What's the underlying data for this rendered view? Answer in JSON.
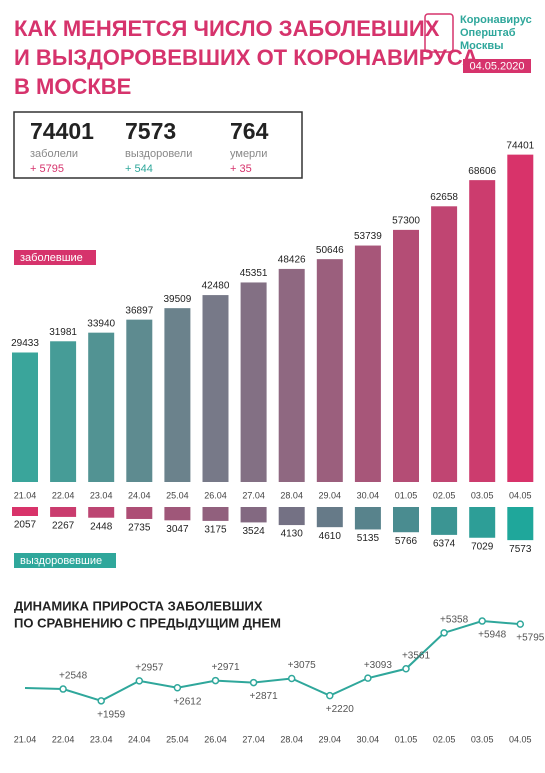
{
  "header": {
    "title": [
      "КАК МЕНЯЕТСЯ ЧИСЛО ЗАБОЛЕВШИХ",
      "И ВЫЗДОРОВЕВШИХ ОТ КОРОНАВИРУСА",
      "В МОСКВЕ"
    ],
    "logo": [
      "Коронавирус",
      "Оперштаб",
      "Москвы"
    ],
    "date": "04.05.2020"
  },
  "stats": [
    {
      "value": "74401",
      "label": "заболели",
      "delta": "+ 5795"
    },
    {
      "value": "7573",
      "label": "выздоровели",
      "delta": "+ 544"
    },
    {
      "value": "764",
      "label": "умерли",
      "delta": "+ 35"
    }
  ],
  "chart_data": [
    {
      "type": "bar",
      "label": "заболевшие",
      "categories": [
        "21.04",
        "22.04",
        "23.04",
        "24.04",
        "25.04",
        "26.04",
        "27.04",
        "28.04",
        "29.04",
        "30.04",
        "01.05",
        "02.05",
        "03.05",
        "04.05"
      ],
      "values": [
        29433,
        31981,
        33940,
        36897,
        39509,
        42480,
        45351,
        48426,
        50646,
        53739,
        57300,
        62658,
        68606,
        74401
      ],
      "gradient": [
        "#3aa59b",
        "#d8336a"
      ],
      "ylim": [
        0,
        75000
      ]
    },
    {
      "type": "bar-down",
      "label": "выздоровевшие",
      "values": [
        2057,
        2267,
        2448,
        2735,
        3047,
        3175,
        3524,
        4130,
        4610,
        5135,
        5766,
        6374,
        7029,
        7573
      ],
      "gradient": [
        "#d8336a",
        "#1fa79b"
      ],
      "ylim": [
        0,
        8000
      ]
    },
    {
      "type": "line",
      "title": [
        "ДИНАМИКА ПРИРОСТА ЗАБОЛЕВШИХ",
        "ПО СРАВНЕНИЮ С ПРЕДЫДУЩИМ ДНЕМ"
      ],
      "categories": [
        "21.04",
        "22.04",
        "23.04",
        "24.04",
        "25.04",
        "26.04",
        "27.04",
        "28.04",
        "29.04",
        "30.04",
        "01.05",
        "02.05",
        "03.05",
        "04.05"
      ],
      "values": [
        2600,
        2548,
        1959,
        2957,
        2612,
        2971,
        2871,
        3075,
        2220,
        3093,
        3561,
        5358,
        5948,
        5795
      ],
      "value_labels": [
        null,
        "+2548",
        "+1959",
        "+2957",
        "+2612",
        "+2971",
        "+2871",
        "+3075",
        "+2220",
        "+3093",
        "+3561",
        "+5358",
        "+5948",
        "+5795"
      ],
      "color": "#2fa79b",
      "ylim": [
        1000,
        7000
      ]
    }
  ]
}
